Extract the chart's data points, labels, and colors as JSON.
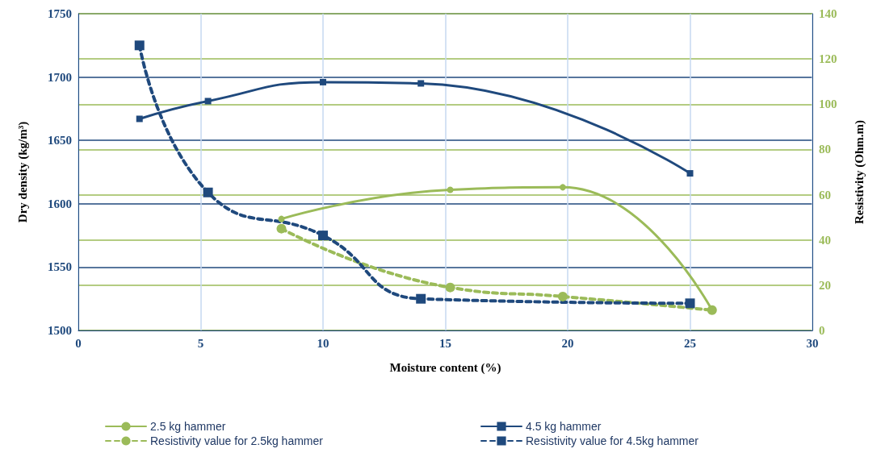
{
  "chart_data": {
    "type": "line",
    "xlabel": "Moisture content (%)",
    "ylabel": "Dry density (kg/m³)",
    "y2label": "Resistivity (Ohm.m)",
    "xlim": [
      0,
      30
    ],
    "xticks": [
      0,
      5,
      10,
      15,
      20,
      25,
      30
    ],
    "ylim": [
      1500,
      1750
    ],
    "yticks": [
      1500,
      1550,
      1600,
      1650,
      1700,
      1750
    ],
    "y2lim": [
      0,
      140
    ],
    "y2ticks": [
      0,
      20,
      40,
      60,
      80,
      100,
      120,
      140
    ],
    "grid": true,
    "legend": "bottom",
    "series": [
      {
        "name": "2.5 kg hammer",
        "color": "#9bbb59",
        "marker": "circle",
        "line_style": "solid",
        "x": [
          8.3,
          15.2,
          19.8,
          25.9
        ],
        "values": [
          1588,
          1611,
          1613,
          1516
        ]
      },
      {
        "name": "4.5 kg hammer",
        "color": "#1f497d",
        "marker": "square",
        "line_style": "solid",
        "x": [
          2.5,
          5.3,
          10,
          14,
          25
        ],
        "values": [
          1667,
          1681,
          1696,
          1695,
          1624
        ]
      },
      {
        "name": "Resistivity value for 2.5kg hammer",
        "color": "#9bbb59",
        "marker": "circle",
        "line_style": "dashed",
        "axis": "y2",
        "x": [
          8.3,
          15.2,
          19.8,
          25.9
        ],
        "values": [
          45,
          19,
          15,
          9
        ]
      },
      {
        "name": "Resistivity value for 4.5kg hammer",
        "color": "#1f497d",
        "marker": "square",
        "line_style": "dashed",
        "axis": "y2",
        "x": [
          2.5,
          5.3,
          10,
          14,
          25
        ],
        "values": [
          126,
          61,
          42,
          14,
          12
        ]
      }
    ]
  }
}
